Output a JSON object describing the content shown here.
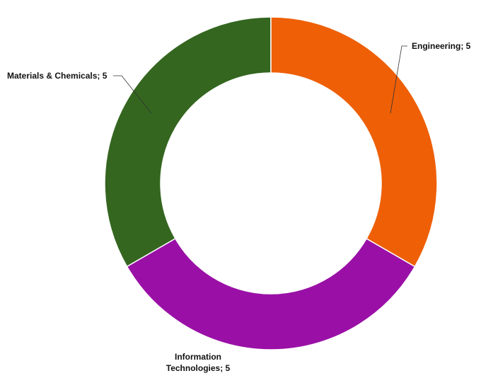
{
  "chart_data": {
    "type": "donut",
    "values": [
      5,
      5,
      5
    ],
    "value_labels": [
      "Engineering; 5",
      "Information Technologies; 5",
      "Materials & Chemicals; 5"
    ],
    "colors": [
      "#ee5f06",
      "#9a10a6",
      "#34661f"
    ]
  }
}
